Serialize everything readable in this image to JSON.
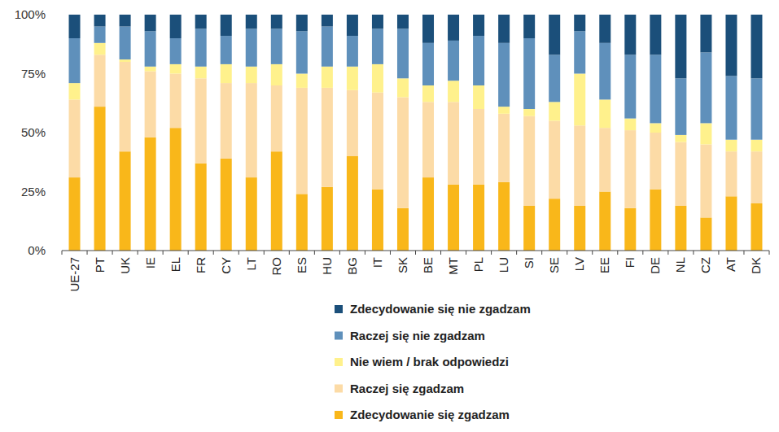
{
  "chart_data": {
    "type": "bar",
    "stacked": true,
    "legend": "bottom",
    "grid": false,
    "categories": [
      "UE-27",
      "PT",
      "UK",
      "IE",
      "EL",
      "FR",
      "CY",
      "LT",
      "RO",
      "ES",
      "HU",
      "BG",
      "IT",
      "SK",
      "BE",
      "MT",
      "PL",
      "LU",
      "SI",
      "SE",
      "LV",
      "EE",
      "FI",
      "DE",
      "NL",
      "CZ",
      "AT",
      "DK"
    ],
    "ylim": [
      0,
      100
    ],
    "yticks": [
      {
        "value": 0,
        "label": "0%"
      },
      {
        "value": 25,
        "label": "25%"
      },
      {
        "value": 50,
        "label": "50%"
      },
      {
        "value": 75,
        "label": "75%"
      },
      {
        "value": 100,
        "label": "100%"
      }
    ],
    "series": [
      {
        "name": "Zdecydowanie się zgadzam",
        "color": "#f9b71a",
        "values": [
          31,
          61,
          42,
          48,
          52,
          37,
          39,
          31,
          42,
          24,
          27,
          40,
          26,
          18,
          31,
          28,
          28,
          29,
          19,
          22,
          19,
          25,
          18,
          26,
          19,
          14,
          23,
          20
        ]
      },
      {
        "name": "Raczej się zgadzam",
        "color": "#fcdba6",
        "values": [
          33,
          22,
          38,
          28,
          23,
          36,
          32,
          40,
          28,
          45,
          42,
          28,
          41,
          47,
          32,
          35,
          32,
          29,
          38,
          33,
          34,
          27,
          33,
          24,
          27,
          31,
          19,
          22
        ]
      },
      {
        "name": "Nie wiem / brak odpowiedzi",
        "color": "#fff18c",
        "values": [
          7,
          5,
          1,
          2,
          4,
          5,
          8,
          7,
          9,
          6,
          9,
          10,
          12,
          8,
          7,
          9,
          10,
          3,
          3,
          8,
          22,
          12,
          5,
          4,
          3,
          9,
          5,
          5
        ]
      },
      {
        "name": "Raczej się nie zgadzam",
        "color": "#5f90bb",
        "values": [
          19,
          7,
          14,
          15,
          11,
          16,
          12,
          16,
          15,
          18,
          17,
          13,
          15,
          21,
          18,
          17,
          21,
          27,
          30,
          20,
          18,
          24,
          27,
          29,
          24,
          30,
          27,
          26
        ]
      },
      {
        "name": "Zdecydowanie się nie zgadzam",
        "color": "#1b4f7a",
        "values": [
          10,
          5,
          5,
          7,
          10,
          6,
          9,
          6,
          6,
          7,
          5,
          9,
          6,
          6,
          12,
          11,
          9,
          12,
          10,
          17,
          7,
          12,
          17,
          17,
          27,
          16,
          26,
          27
        ]
      }
    ]
  }
}
